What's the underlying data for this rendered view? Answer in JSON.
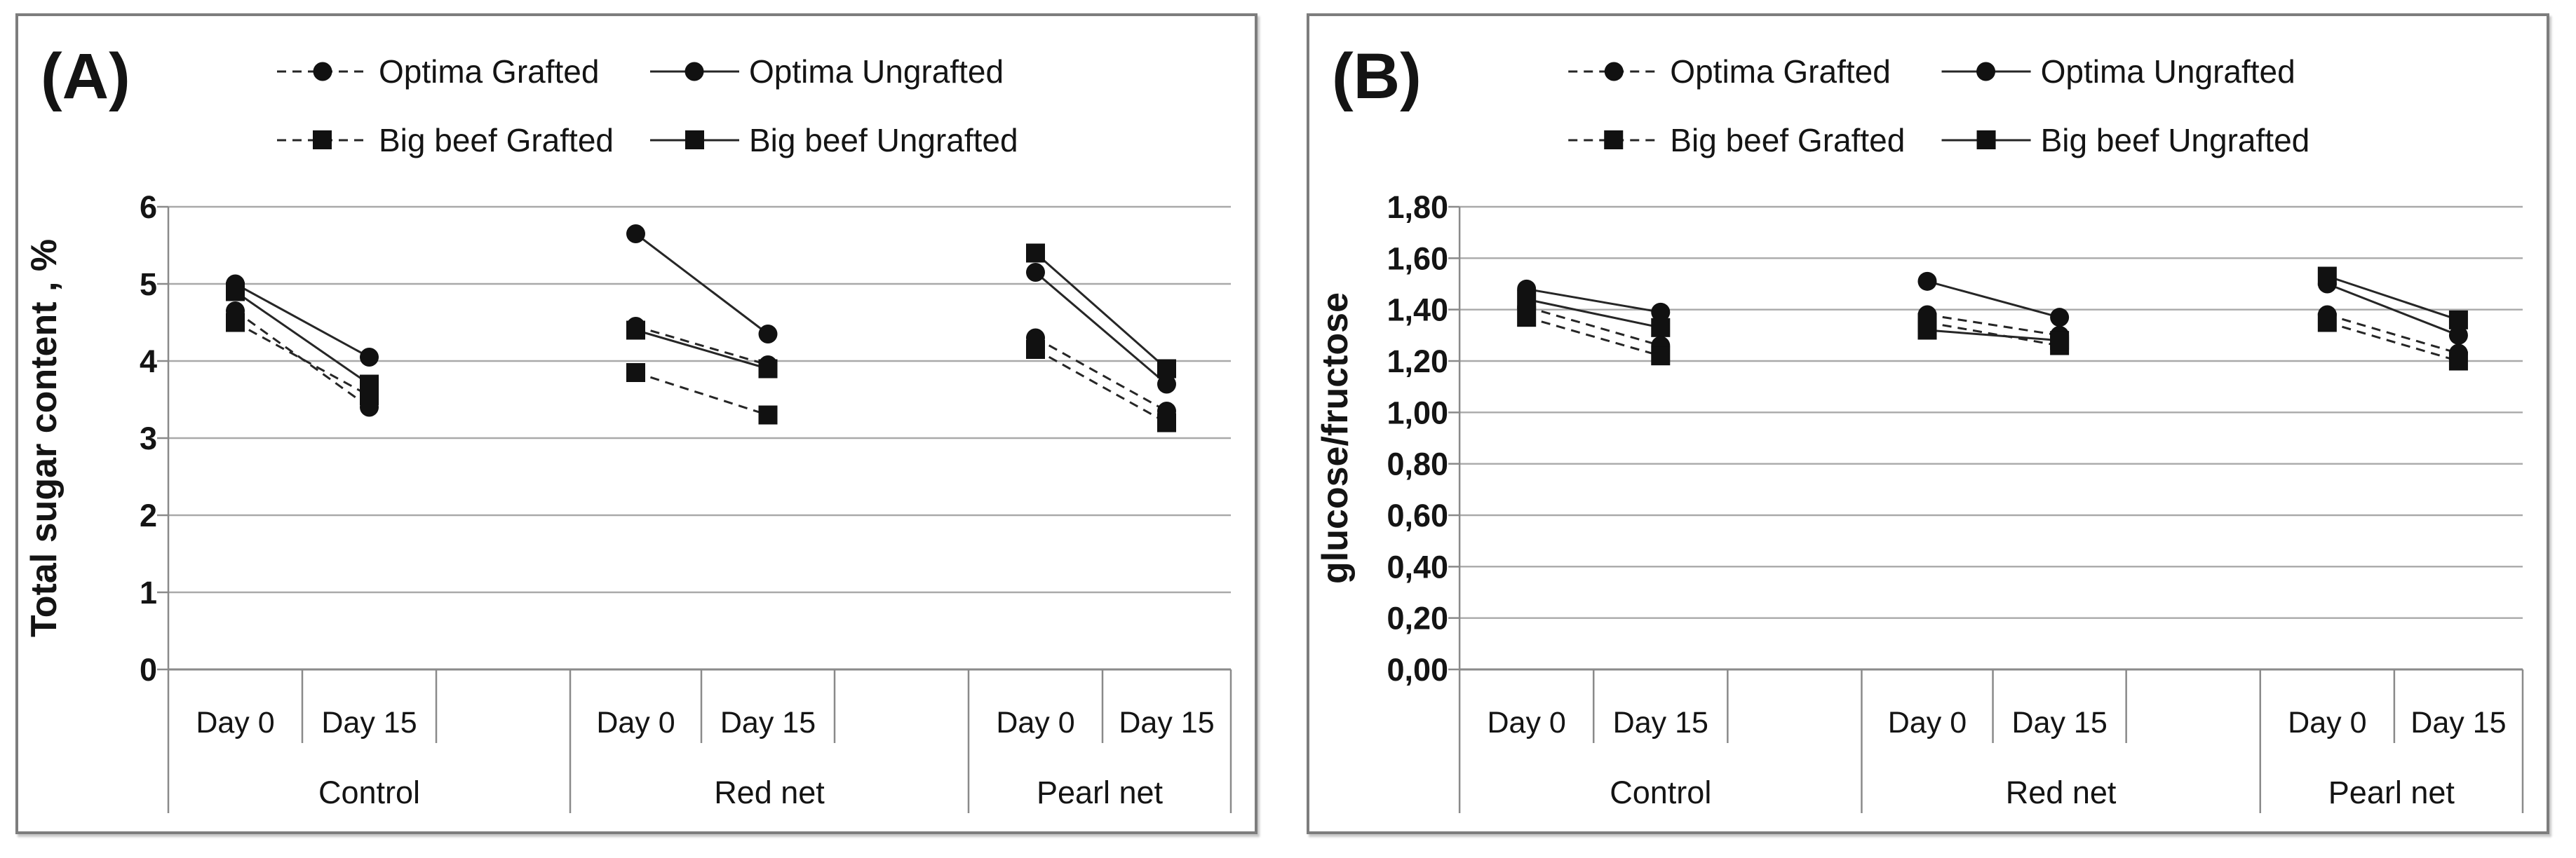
{
  "chart_data": [
    {
      "type": "line",
      "panel_label": "(A)",
      "title": "",
      "xlabel": "",
      "ylabel": "Total sugar content , %",
      "ylim": [
        0,
        6
      ],
      "ytick_labels": [
        "6",
        "5",
        "4",
        "3",
        "2",
        "1",
        "0"
      ],
      "grid": "horizontal",
      "legend_position": "top",
      "groups": [
        "Control",
        "Red net",
        "Pearl net"
      ],
      "x_sublabels": [
        "Day 0",
        "Day 15"
      ],
      "series": [
        {
          "name": "Optima Grafted",
          "marker": "circle",
          "line": "dashed",
          "values": [
            [
              4.65,
              3.4
            ],
            [
              4.45,
              3.95
            ],
            [
              4.3,
              3.35
            ]
          ]
        },
        {
          "name": "Optima Ungrafted",
          "marker": "circle",
          "line": "solid",
          "values": [
            [
              5.0,
              4.05
            ],
            [
              5.65,
              4.35
            ],
            [
              5.15,
              3.7
            ]
          ]
        },
        {
          "name": "Big beef Grafted",
          "marker": "square",
          "line": "dashed",
          "values": [
            [
              4.5,
              3.55
            ],
            [
              3.85,
              3.3
            ],
            [
              4.15,
              3.2
            ]
          ]
        },
        {
          "name": "Big beef Ungrafted",
          "marker": "square",
          "line": "solid",
          "values": [
            [
              4.9,
              3.7
            ],
            [
              4.4,
              3.9
            ],
            [
              5.4,
              3.9
            ]
          ]
        }
      ]
    },
    {
      "type": "line",
      "panel_label": "(B)",
      "title": "",
      "xlabel": "",
      "ylabel": "glucose/fructose",
      "ylim": [
        0,
        1.8
      ],
      "ytick_labels": [
        "1,80",
        "1,60",
        "1,40",
        "1,20",
        "1,00",
        "0,80",
        "0,60",
        "0,40",
        "0,20",
        "0,00"
      ],
      "grid": "horizontal",
      "legend_position": "top",
      "groups": [
        "Control",
        "Red net",
        "Pearl net"
      ],
      "x_sublabels": [
        "Day 0",
        "Day 15"
      ],
      "series": [
        {
          "name": "Optima Grafted",
          "marker": "circle",
          "line": "dashed",
          "values": [
            [
              1.41,
              1.26
            ],
            [
              1.38,
              1.3
            ],
            [
              1.38,
              1.23
            ]
          ]
        },
        {
          "name": "Optima Ungrafted",
          "marker": "circle",
          "line": "solid",
          "values": [
            [
              1.48,
              1.39
            ],
            [
              1.51,
              1.37
            ],
            [
              1.5,
              1.3
            ]
          ]
        },
        {
          "name": "Big beef Grafted",
          "marker": "square",
          "line": "dashed",
          "values": [
            [
              1.37,
              1.22
            ],
            [
              1.35,
              1.26
            ],
            [
              1.35,
              1.2
            ]
          ]
        },
        {
          "name": "Big beef Ungrafted",
          "marker": "square",
          "line": "solid",
          "values": [
            [
              1.44,
              1.33
            ],
            [
              1.32,
              1.28
            ],
            [
              1.53,
              1.36
            ]
          ]
        }
      ]
    }
  ]
}
